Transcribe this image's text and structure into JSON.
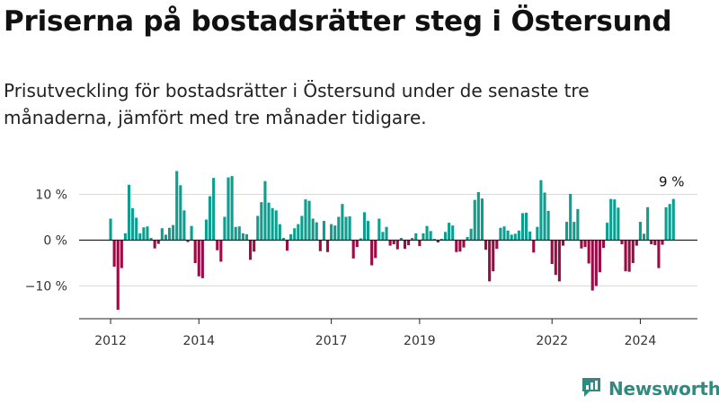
{
  "header": {
    "title": "Priserna på bostadsrätter steg i Östersund",
    "subtitle": "Prisutveckling för bostadsrätter i Östersund under de senaste tre månaderna, jämfört med tre månader tidigare."
  },
  "brand": {
    "name": "Newsworthy",
    "icon": "newsworthy-logo-icon",
    "color": "#2f8b7f"
  },
  "chart_data": {
    "type": "bar",
    "x_start": "2012-01",
    "xtick_labels": [
      "2012",
      "2014",
      "2017",
      "2019",
      "2022",
      "2024"
    ],
    "xtick_years": [
      2012,
      2014,
      2017,
      2019,
      2022,
      2024
    ],
    "ytick_labels": [
      "10 %",
      "0 %",
      "−10 %"
    ],
    "ytick_values": [
      10,
      0,
      -10
    ],
    "ylim": [
      -17,
      16
    ],
    "grid": true,
    "annotation": {
      "text": "9 %",
      "value": 9
    },
    "colors": {
      "positive": "#0d9e8f",
      "negative": "#9b0b45"
    },
    "values": [
      4.7,
      -5.8,
      -15.2,
      -6.1,
      1.5,
      12.1,
      7,
      4.9,
      1.5,
      2.8,
      3,
      0.5,
      -1.8,
      -0.8,
      2.6,
      1.2,
      2.7,
      3.3,
      15.1,
      12,
      6.5,
      -0.4,
      3.1,
      -5,
      -7.9,
      -8.3,
      4.5,
      9.6,
      13.6,
      -2.2,
      -4.7,
      5.1,
      13.7,
      14,
      2.9,
      3,
      1.5,
      1.3,
      -4.3,
      -2.5,
      5.3,
      8.3,
      12.9,
      8.2,
      7,
      6.5,
      3.5,
      0.5,
      -2.3,
      1.3,
      2.6,
      3.5,
      5.3,
      8.9,
      8.6,
      4.7,
      3.9,
      -2.4,
      4.2,
      -2.6,
      3.5,
      3.2,
      5.1,
      7.9,
      5.1,
      5.2,
      -4,
      -1.5,
      0.4,
      6.1,
      4.2,
      -5.5,
      -3.9,
      4.7,
      1.8,
      2.9,
      -1.2,
      -0.9,
      -2,
      0.5,
      -1.9,
      -1.1,
      0.5,
      1.5,
      -1.3,
      1.5,
      3.1,
      2,
      0.3,
      -0.5,
      0.3,
      1.8,
      3.8,
      3.2,
      -2.6,
      -2.5,
      -1.6,
      0.7,
      2.5,
      8.8,
      10.5,
      9.1,
      -2.1,
      -9,
      -6.8,
      -1.9,
      2.7,
      3,
      2.1,
      1.2,
      1.4,
      2.1,
      5.9,
      6,
      1.9,
      -2.7,
      2.9,
      13.1,
      10.4,
      6.4,
      -5.2,
      -7.6,
      -9,
      -1.2,
      4,
      10.1,
      4,
      6.8,
      -1.8,
      -1.5,
      -5.1,
      -11,
      -10,
      -7,
      -1.7,
      3.8,
      9,
      8.9,
      7.1,
      -0.9,
      -6.8,
      -6.9,
      -5,
      -1.2,
      4,
      1.4,
      7.2,
      -0.9,
      -1.1,
      -6.1,
      -1,
      7.2,
      7.9,
      9
    ]
  }
}
